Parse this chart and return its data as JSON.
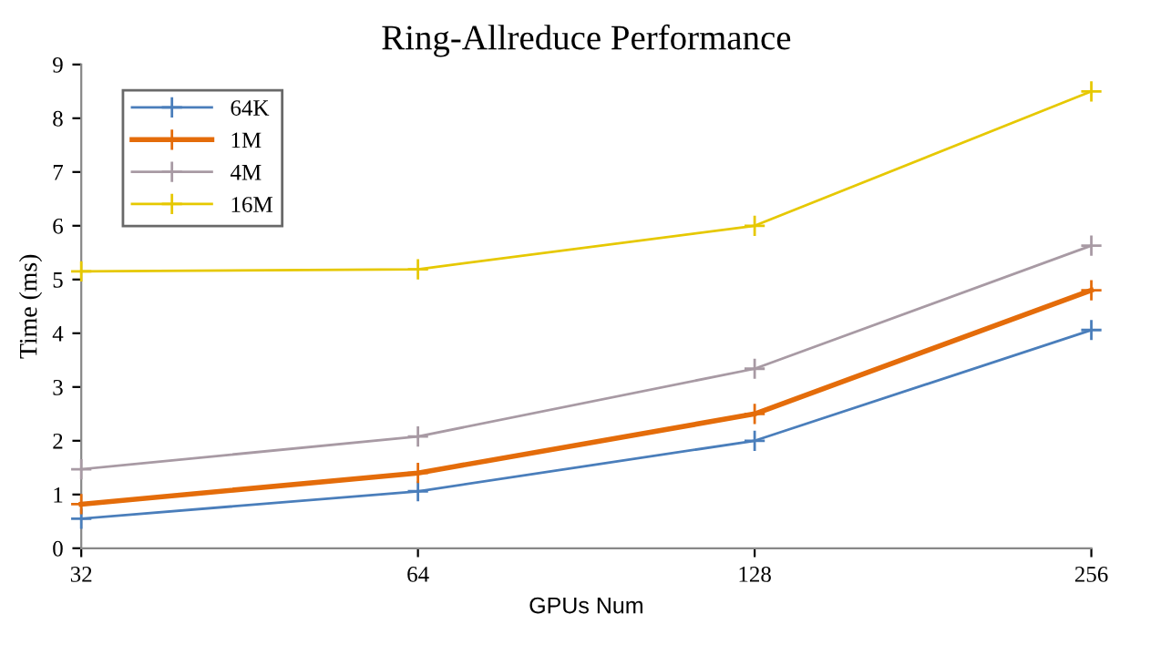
{
  "chart_data": {
    "type": "line",
    "title": "Ring-Allreduce Performance",
    "xlabel": "GPUs Num",
    "ylabel": "Time (ms)",
    "x": [
      32,
      64,
      128,
      256
    ],
    "series": [
      {
        "name": "64K",
        "color": "#4a7ebb",
        "values": [
          0.55,
          1.06,
          2.0,
          4.06
        ]
      },
      {
        "name": "1M",
        "color": "#e46c0a",
        "values": [
          0.82,
          1.4,
          2.5,
          4.8
        ]
      },
      {
        "name": "4M",
        "color": "#a89aa4",
        "values": [
          1.47,
          2.08,
          3.34,
          5.63
        ]
      },
      {
        "name": "16M",
        "color": "#e6c800",
        "values": [
          5.15,
          5.19,
          6.0,
          8.5
        ]
      }
    ],
    "log": "x",
    "xlim": [
      32,
      256
    ],
    "xticks": [
      32,
      64,
      128,
      256
    ],
    "ylim": [
      0,
      9
    ],
    "yticks": [
      0,
      1,
      2,
      3,
      4,
      5,
      6,
      7,
      8,
      9
    ],
    "grid": false,
    "legend": "top left",
    "marker": "cross",
    "line_style": "solid"
  }
}
